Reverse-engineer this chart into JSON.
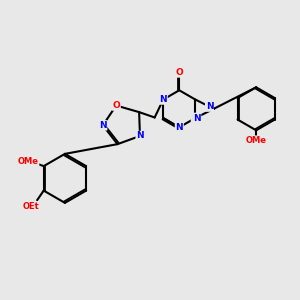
{
  "bg_color": "#e8e8e8",
  "atom_color_N": "#0000ff",
  "atom_color_O": "#ff0000",
  "atom_color_C": "#000000",
  "bond_color": "#000000",
  "bond_width": 1.5,
  "figsize": [
    3.0,
    3.0
  ],
  "dpi": 100,
  "xlim": [
    0,
    10
  ],
  "ylim": [
    0,
    10
  ]
}
